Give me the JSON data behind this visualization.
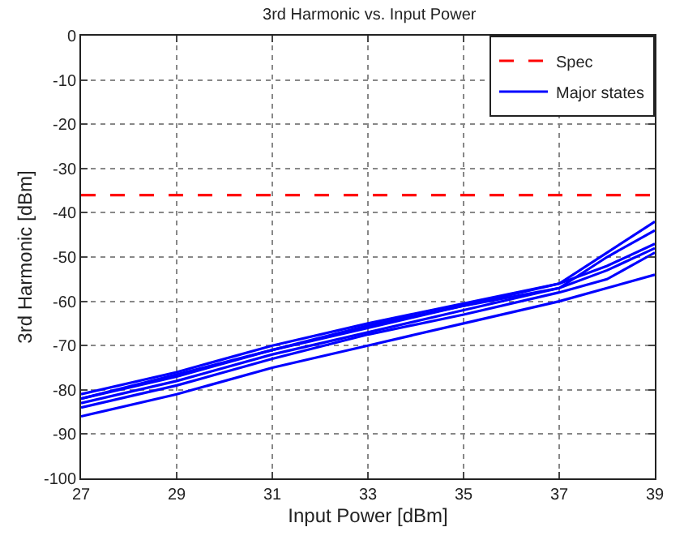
{
  "chart_data": {
    "type": "line",
    "title": "3rd Harmonic vs. Input Power",
    "xlabel": "Input Power [dBm]",
    "ylabel": "3rd Harmonic [dBm]",
    "x": [
      27,
      29,
      31,
      33,
      35,
      37,
      38,
      39
    ],
    "series": [
      {
        "name": "Spec",
        "color": "#ff0000",
        "line_style": "dashed",
        "x": [
          27,
          39
        ],
        "values": [
          -36,
          -36
        ]
      },
      {
        "name": "Major states",
        "color": "#0000ff",
        "values": [
          -81,
          -76,
          -70,
          -65,
          -60.5,
          -56,
          -49,
          -42
        ]
      },
      {
        "color": "#0000ff",
        "values": [
          -82,
          -77,
          -71,
          -66,
          -61,
          -57,
          -50,
          -44
        ]
      },
      {
        "color": "#0000ff",
        "values": [
          -82,
          -76.5,
          -71,
          -65.5,
          -61,
          -56,
          -52,
          -47
        ]
      },
      {
        "color": "#0000ff",
        "values": [
          -83,
          -78,
          -72,
          -67,
          -62,
          -57,
          -53,
          -48
        ]
      },
      {
        "color": "#0000ff",
        "values": [
          -84,
          -79,
          -73,
          -67.5,
          -63,
          -58,
          -55,
          -49
        ]
      },
      {
        "color": "#0000ff",
        "values": [
          -86,
          -81,
          -75,
          -70,
          -65,
          -60,
          -57,
          -54
        ]
      }
    ],
    "xlim": [
      27,
      39
    ],
    "xticks": [
      27,
      29,
      31,
      33,
      35,
      37,
      39
    ],
    "ylim": [
      -100,
      0
    ],
    "yticks": [
      -100,
      -90,
      -80,
      -70,
      -60,
      -50,
      -40,
      -30,
      -20,
      -10,
      0
    ],
    "grid": true,
    "legend": "top right",
    "line_style": "solid",
    "marker": "none"
  }
}
